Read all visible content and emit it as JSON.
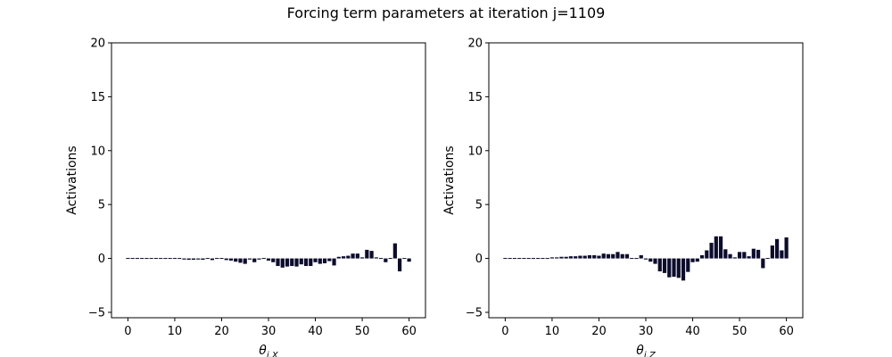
{
  "figure": {
    "title": "Forcing term parameters at iteration j=1109"
  },
  "colors": {
    "bar": "#0c0c2c",
    "axes": "#000000",
    "background": "#ffffff"
  },
  "chart_data": [
    {
      "type": "bar",
      "xlabel": "θi,X",
      "xlabel_main": "θ",
      "xlabel_sub": "i,X",
      "ylabel": "Activations",
      "xlim": [
        -3.5,
        63.5
      ],
      "ylim": [
        -5.5,
        20
      ],
      "xticks": [
        0,
        10,
        20,
        30,
        40,
        50,
        60
      ],
      "yticks": [
        -5,
        0,
        5,
        10,
        15,
        20
      ],
      "grid": false,
      "x": [
        0,
        1,
        2,
        3,
        4,
        5,
        6,
        7,
        8,
        9,
        10,
        11,
        12,
        13,
        14,
        15,
        16,
        17,
        18,
        19,
        20,
        21,
        22,
        23,
        24,
        25,
        26,
        27,
        28,
        29,
        30,
        31,
        32,
        33,
        34,
        35,
        36,
        37,
        38,
        39,
        40,
        41,
        42,
        43,
        44,
        45,
        46,
        47,
        48,
        49,
        50,
        51,
        52,
        53,
        54,
        55,
        56,
        57,
        58,
        59,
        60
      ],
      "values": [
        0,
        0,
        0,
        0,
        0,
        0,
        0,
        -0.03,
        -0.05,
        -0.05,
        0,
        -0.08,
        -0.1,
        -0.12,
        -0.12,
        -0.1,
        -0.12,
        -0.05,
        -0.15,
        -0.05,
        -0.08,
        -0.15,
        -0.2,
        -0.3,
        -0.4,
        -0.5,
        -0.1,
        -0.35,
        -0.1,
        -0.05,
        -0.2,
        -0.35,
        -0.7,
        -0.85,
        -0.75,
        -0.7,
        -0.75,
        -0.55,
        -0.7,
        -0.7,
        -0.35,
        -0.5,
        -0.45,
        -0.25,
        -0.65,
        0.15,
        0.2,
        0.25,
        0.45,
        0.45,
        0.1,
        0.8,
        0.7,
        0.1,
        -0.05,
        -0.35,
        0.05,
        1.4,
        -1.2,
        0.05,
        -0.3
      ]
    },
    {
      "type": "bar",
      "xlabel": "θi,Z",
      "xlabel_main": "θ",
      "xlabel_sub": "i,Z",
      "ylabel": "Activations",
      "xlim": [
        -3.5,
        63.5
      ],
      "ylim": [
        -5.5,
        20
      ],
      "xticks": [
        0,
        10,
        20,
        30,
        40,
        50,
        60
      ],
      "yticks": [
        -5,
        0,
        5,
        10,
        15,
        20
      ],
      "grid": false,
      "x": [
        0,
        1,
        2,
        3,
        4,
        5,
        6,
        7,
        8,
        9,
        10,
        11,
        12,
        13,
        14,
        15,
        16,
        17,
        18,
        19,
        20,
        21,
        22,
        23,
        24,
        25,
        26,
        27,
        28,
        29,
        30,
        31,
        32,
        33,
        34,
        35,
        36,
        37,
        38,
        39,
        40,
        41,
        42,
        43,
        44,
        45,
        46,
        47,
        48,
        49,
        50,
        51,
        52,
        53,
        54,
        55,
        56,
        57,
        58,
        59,
        60
      ],
      "values": [
        -0.02,
        -0.02,
        -0.02,
        -0.02,
        -0.02,
        0.02,
        0.03,
        0.05,
        0.08,
        0.08,
        0.1,
        0.1,
        0.15,
        0.15,
        0.2,
        0.2,
        0.25,
        0.25,
        0.3,
        0.3,
        0.25,
        0.45,
        0.4,
        0.4,
        0.6,
        0.4,
        0.4,
        0.05,
        -0.05,
        0.3,
        -0.1,
        -0.3,
        -0.5,
        -1.2,
        -1.35,
        -1.75,
        -1.7,
        -1.8,
        -2.05,
        -1.25,
        -0.35,
        -0.3,
        0.3,
        0.75,
        1.45,
        2.05,
        2.05,
        0.85,
        0.4,
        0.1,
        0.6,
        0.6,
        0.2,
        0.9,
        0.8,
        -0.9,
        0.05,
        1.2,
        1.8,
        0.75,
        1.95
      ]
    }
  ]
}
